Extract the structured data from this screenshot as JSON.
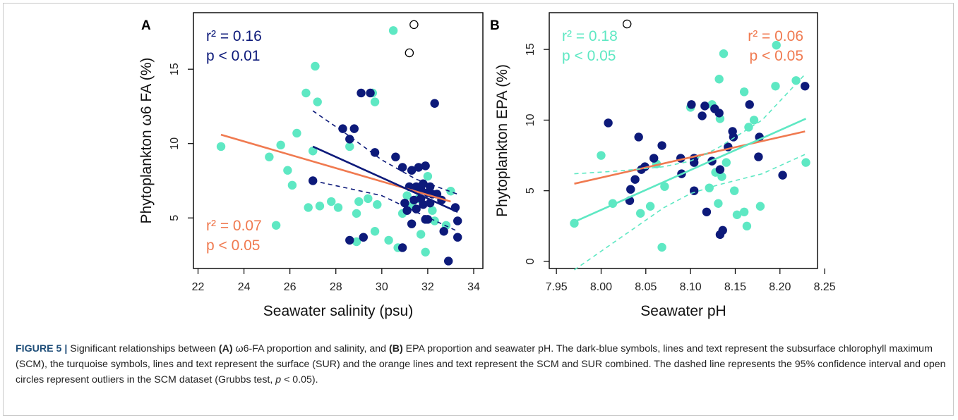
{
  "caption": {
    "label": "FIGURE 5 |",
    "s1": " Significant relationships between ",
    "b1": "(A)",
    "s2": " ω6-FA proportion and salinity, and ",
    "b2": "(B)",
    "s3": " EPA proportion and seawater pH. The dark-blue symbols, lines and text represent the subsurface chlorophyll maximum (SCM), the turquoise symbols, lines and text represent the surface (SUR) and the orange lines and text represent the SCM and SUR combined. The dashed line represents the 95% confidence interval and open circles represent outliers in the SCM dataset (Grubbs test, ",
    "p_italic": "p",
    "s4": " < 0.05)."
  },
  "colors": {
    "scm": "#0d1a7a",
    "sur": "#5ee8c3",
    "combined": "#f07a50",
    "axis": "#000000"
  },
  "chart_data": [
    {
      "panel": "A",
      "type": "scatter",
      "xlabel": "Seawater salinity (psu)",
      "ylabel": "Phytoplankton ω6 FA (%)",
      "xlim": [
        21.8,
        34.4
      ],
      "ylim": [
        1.6,
        18.8
      ],
      "xticks": [
        22,
        24,
        26,
        28,
        30,
        32,
        34
      ],
      "yticks": [
        5,
        10,
        15
      ],
      "stats": [
        {
          "group": "scm",
          "r2": "r² = 0.16",
          "p": "p < 0.01",
          "position": "top-left"
        },
        {
          "group": "combined",
          "r2": "r² = 0.07",
          "p": "p < 0.05",
          "position": "bottom-left"
        }
      ],
      "series": [
        {
          "group": "sur",
          "points": [
            [
              23.0,
              9.8
            ],
            [
              25.1,
              9.1
            ],
            [
              25.4,
              4.5
            ],
            [
              25.6,
              9.9
            ],
            [
              25.9,
              8.2
            ],
            [
              26.1,
              7.2
            ],
            [
              26.3,
              10.7
            ],
            [
              26.7,
              13.4
            ],
            [
              26.8,
              5.7
            ],
            [
              27.0,
              9.5
            ],
            [
              27.1,
              15.2
            ],
            [
              27.2,
              12.8
            ],
            [
              27.3,
              5.8
            ],
            [
              27.8,
              6.1
            ],
            [
              28.1,
              5.7
            ],
            [
              28.6,
              9.8
            ],
            [
              28.9,
              3.4
            ],
            [
              28.9,
              5.3
            ],
            [
              29.0,
              6.1
            ],
            [
              29.4,
              6.3
            ],
            [
              29.6,
              13.4
            ],
            [
              29.7,
              4.1
            ],
            [
              29.7,
              12.8
            ],
            [
              29.8,
              5.9
            ],
            [
              30.3,
              3.5
            ],
            [
              30.5,
              17.6
            ],
            [
              30.7,
              3.0
            ],
            [
              30.9,
              5.3
            ],
            [
              31.1,
              6.5
            ],
            [
              31.3,
              5.8
            ],
            [
              31.6,
              6.3
            ],
            [
              31.7,
              3.9
            ],
            [
              31.9,
              2.7
            ],
            [
              32.0,
              7.8
            ],
            [
              32.2,
              5.5
            ],
            [
              32.3,
              4.8
            ],
            [
              32.8,
              4.5
            ],
            [
              33.0,
              6.8
            ]
          ]
        },
        {
          "group": "scm",
          "points": [
            [
              27.0,
              7.5
            ],
            [
              28.3,
              11.0
            ],
            [
              28.6,
              10.3
            ],
            [
              28.6,
              3.5
            ],
            [
              28.8,
              11.0
            ],
            [
              29.1,
              13.4
            ],
            [
              29.2,
              3.7
            ],
            [
              29.5,
              13.4
            ],
            [
              29.7,
              9.4
            ],
            [
              30.6,
              9.1
            ],
            [
              30.9,
              3.0
            ],
            [
              30.9,
              8.4
            ],
            [
              31.0,
              6.0
            ],
            [
              31.1,
              5.5
            ],
            [
              31.2,
              7.1
            ],
            [
              31.3,
              8.2
            ],
            [
              31.3,
              4.6
            ],
            [
              31.4,
              6.2
            ],
            [
              31.5,
              7.1
            ],
            [
              31.5,
              5.6
            ],
            [
              31.6,
              8.4
            ],
            [
              31.7,
              6.9
            ],
            [
              31.7,
              6.3
            ],
            [
              31.8,
              7.3
            ],
            [
              31.8,
              5.9
            ],
            [
              31.9,
              8.5
            ],
            [
              31.9,
              4.9
            ],
            [
              32.0,
              6.7
            ],
            [
              32.0,
              4.9
            ],
            [
              32.1,
              6.0
            ],
            [
              32.1,
              7.1
            ],
            [
              32.2,
              6.6
            ],
            [
              32.3,
              12.7
            ],
            [
              32.4,
              6.6
            ],
            [
              32.6,
              6.2
            ],
            [
              32.7,
              4.1
            ],
            [
              32.9,
              2.1
            ],
            [
              33.2,
              5.7
            ],
            [
              33.3,
              4.8
            ],
            [
              33.3,
              3.7
            ]
          ]
        },
        {
          "group": "outlier",
          "points": [
            [
              31.2,
              16.1
            ],
            [
              31.4,
              18.0
            ]
          ]
        }
      ],
      "fits": [
        {
          "group": "combined",
          "x": [
            23.0,
            33.0
          ],
          "y": [
            10.6,
            6.1
          ]
        },
        {
          "group": "scm",
          "x": [
            27.0,
            33.3
          ],
          "y": [
            9.8,
            5.4
          ]
        },
        {
          "group": "scm_ci",
          "x": [
            27.0,
            28.5,
            30.0,
            31.5,
            33.3
          ],
          "y": [
            12.2,
            10.6,
            8.9,
            7.6,
            6.6
          ]
        },
        {
          "group": "scm_ci",
          "x": [
            27.0,
            28.5,
            30.0,
            31.5,
            33.3
          ],
          "y": [
            7.5,
            7.0,
            6.5,
            5.4,
            4.1
          ]
        }
      ]
    },
    {
      "panel": "B",
      "type": "scatter",
      "xlabel": "Seawater pH",
      "ylabel": "Phytoplankton EPA (%)",
      "xlim": [
        7.942,
        8.242
      ],
      "ylim": [
        -0.5,
        17.6
      ],
      "xticks": [
        "7.95",
        "8.00",
        "8.05",
        "8.10",
        "8.15",
        "8.20",
        "8.25"
      ],
      "yticks": [
        0,
        5,
        10,
        15
      ],
      "stats": [
        {
          "group": "sur",
          "r2": "r² = 0.18",
          "p": "p < 0.05",
          "position": "top-left"
        },
        {
          "group": "combined",
          "r2": "r² = 0.06",
          "p": "p < 0.05",
          "position": "top-right"
        }
      ],
      "series": [
        {
          "group": "sur",
          "points": [
            [
              7.97,
              2.7
            ],
            [
              8.0,
              7.5
            ],
            [
              8.013,
              4.1
            ],
            [
              8.044,
              3.4
            ],
            [
              8.055,
              3.9
            ],
            [
              8.062,
              6.9
            ],
            [
              8.068,
              1.0
            ],
            [
              8.071,
              5.3
            ],
            [
              8.1,
              10.9
            ],
            [
              8.121,
              5.2
            ],
            [
              8.124,
              11.1
            ],
            [
              8.128,
              6.3
            ],
            [
              8.131,
              4.1
            ],
            [
              8.132,
              12.9
            ],
            [
              8.133,
              10.1
            ],
            [
              8.135,
              6.0
            ],
            [
              8.137,
              14.7
            ],
            [
              8.14,
              7.0
            ],
            [
              8.149,
              5.0
            ],
            [
              8.152,
              3.3
            ],
            [
              8.16,
              3.5
            ],
            [
              8.16,
              12.0
            ],
            [
              8.163,
              2.5
            ],
            [
              8.165,
              9.5
            ],
            [
              8.171,
              10.0
            ],
            [
              8.178,
              3.9
            ],
            [
              8.195,
              12.4
            ],
            [
              8.196,
              15.3
            ],
            [
              8.218,
              12.8
            ],
            [
              8.229,
              7.0
            ]
          ]
        },
        {
          "group": "scm",
          "points": [
            [
              8.008,
              9.8
            ],
            [
              8.032,
              4.3
            ],
            [
              8.033,
              5.1
            ],
            [
              8.038,
              5.8
            ],
            [
              8.042,
              8.8
            ],
            [
              8.045,
              6.5
            ],
            [
              8.049,
              6.7
            ],
            [
              8.059,
              7.3
            ],
            [
              8.068,
              8.2
            ],
            [
              8.089,
              7.3
            ],
            [
              8.09,
              6.2
            ],
            [
              8.101,
              11.1
            ],
            [
              8.104,
              5.0
            ],
            [
              8.104,
              7.0
            ],
            [
              8.104,
              7.3
            ],
            [
              8.113,
              10.3
            ],
            [
              8.116,
              11.0
            ],
            [
              8.118,
              3.5
            ],
            [
              8.124,
              7.1
            ],
            [
              8.127,
              10.8
            ],
            [
              8.132,
              10.5
            ],
            [
              8.133,
              1.9
            ],
            [
              8.133,
              6.5
            ],
            [
              8.136,
              2.2
            ],
            [
              8.142,
              8.1
            ],
            [
              8.147,
              9.2
            ],
            [
              8.148,
              8.8
            ],
            [
              8.166,
              11.1
            ],
            [
              8.176,
              7.4
            ],
            [
              8.177,
              8.8
            ],
            [
              8.203,
              6.1
            ],
            [
              8.228,
              12.4
            ]
          ]
        },
        {
          "group": "outlier",
          "points": [
            [
              8.029,
              16.8
            ]
          ]
        }
      ],
      "fits": [
        {
          "group": "combined",
          "x": [
            7.97,
            8.228
          ],
          "y": [
            5.5,
            9.2
          ]
        },
        {
          "group": "sur",
          "x": [
            7.97,
            8.229
          ],
          "y": [
            2.8,
            10.1
          ]
        },
        {
          "group": "sur_ci",
          "x": [
            7.97,
            8.02,
            8.07,
            8.1,
            8.13,
            8.18,
            8.229
          ],
          "y": [
            6.2,
            6.4,
            6.7,
            7.1,
            8.0,
            10.0,
            13.3
          ]
        },
        {
          "group": "sur_ci",
          "x": [
            7.97,
            8.02,
            8.07,
            8.1,
            8.13,
            8.18,
            8.229
          ],
          "y": [
            -0.6,
            1.6,
            3.8,
            4.8,
            5.4,
            6.2,
            7.6
          ]
        }
      ]
    }
  ]
}
